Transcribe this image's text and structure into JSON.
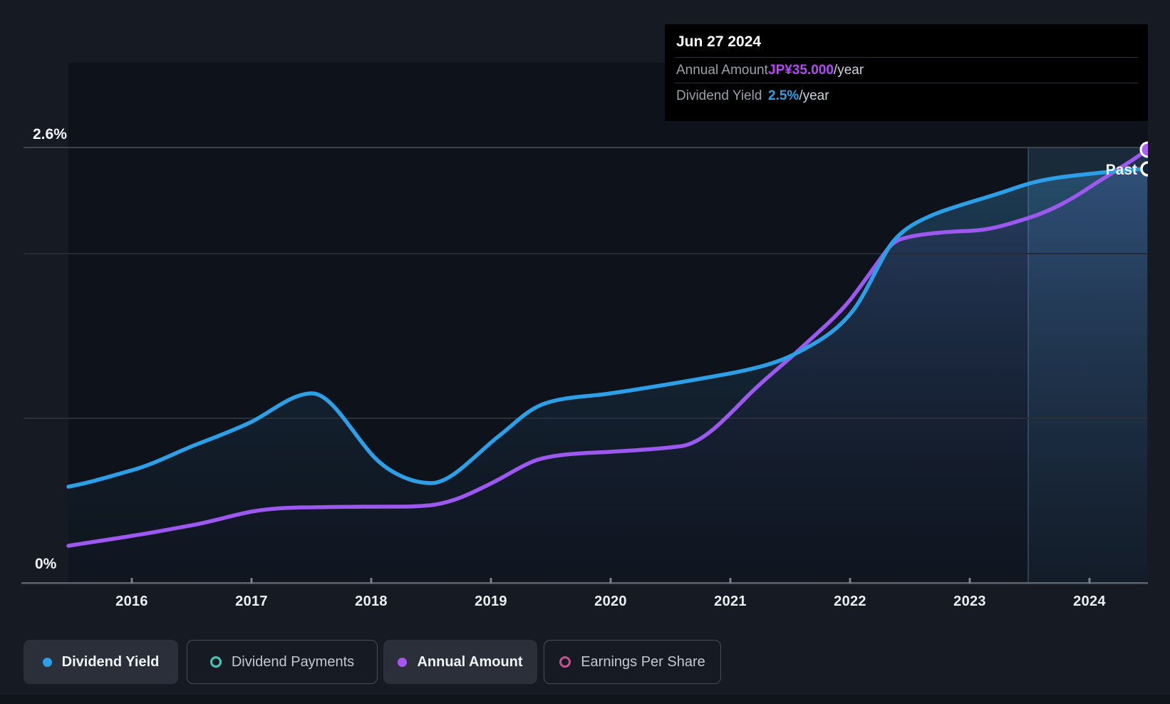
{
  "tooltip": {
    "date": "Jun 27 2024",
    "rows": [
      {
        "label": "Annual Amount",
        "value": "JP¥35.000",
        "suffix": "/year",
        "value_color": "#b44af2"
      },
      {
        "label": "Dividend Yield",
        "value": "2.5%",
        "suffix": "/year",
        "value_color": "#2da1e8"
      }
    ]
  },
  "y_axis": {
    "top_label": "2.6%",
    "bottom_label": "0%"
  },
  "x_axis": {
    "labels": [
      "2016",
      "2017",
      "2018",
      "2019",
      "2020",
      "2021",
      "2022",
      "2023",
      "2024"
    ]
  },
  "past_label": "Past",
  "legend": {
    "items": [
      {
        "label": "Dividend Yield",
        "marker": "dot",
        "color": "#2b9fe8",
        "active": true
      },
      {
        "label": "Dividend Payments",
        "marker": "ring",
        "color": "#43c8bb",
        "active": false
      },
      {
        "label": "Annual Amount",
        "marker": "dot",
        "color": "#a855f2",
        "active": true
      },
      {
        "label": "Earnings Per Share",
        "marker": "ring",
        "color": "#c74f93",
        "active": false
      }
    ]
  },
  "colors": {
    "dividend_yield_line": "#2d9fe6",
    "annual_amount_line": "#9c58ef",
    "background": "#151a23",
    "plot_background": "#0e131b",
    "tooltip_background": "#000000",
    "highlight_band_divider": "#6fa9d2"
  },
  "chart_data": {
    "type": "line",
    "title": "",
    "xlabel": "",
    "ylabel": "Dividend Yield (%) / Annual Amount (JP¥)",
    "x": [
      2015.5,
      2016,
      2016.5,
      2017,
      2017.4,
      2018,
      2018.6,
      2019,
      2019.4,
      2020,
      2020.5,
      2021,
      2021.5,
      2022,
      2022.3,
      2022.7,
      2023,
      2023.5,
      2024,
      2024.5
    ],
    "series": [
      {
        "name": "Dividend Yield",
        "unit": "%",
        "color": "#2d9fe6",
        "ylim": [
          0,
          2.6
        ],
        "values": [
          0.58,
          0.67,
          0.82,
          0.96,
          1.13,
          0.77,
          0.6,
          0.88,
          1.07,
          1.13,
          1.19,
          1.25,
          1.37,
          1.61,
          2.0,
          2.21,
          2.28,
          2.39,
          2.45,
          2.5
        ]
      },
      {
        "name": "Annual Amount",
        "unit": "JP¥/year",
        "color": "#9c58ef",
        "ylim": [
          0,
          36.6
        ],
        "values": [
          3.0,
          3.8,
          4.6,
          5.7,
          6.1,
          6.1,
          6.2,
          8.0,
          10.0,
          10.5,
          11.0,
          15.0,
          18.4,
          23.0,
          26.9,
          27.8,
          28.3,
          29.3,
          31.8,
          35.0
        ]
      }
    ],
    "annotations": [
      "Past region highlighted from 2023.5 to 2024.5",
      "End markers at Jun 27 2024: Dividend Yield 2.5%/year, Annual Amount JP¥35.000/year"
    ],
    "x_tick_labels": [
      "2016",
      "2017",
      "2018",
      "2019",
      "2020",
      "2021",
      "2022",
      "2023",
      "2024"
    ],
    "y_tick_labels": [
      "0%",
      "2.6%"
    ],
    "grid": "horizontal",
    "legend_position": "bottom"
  }
}
